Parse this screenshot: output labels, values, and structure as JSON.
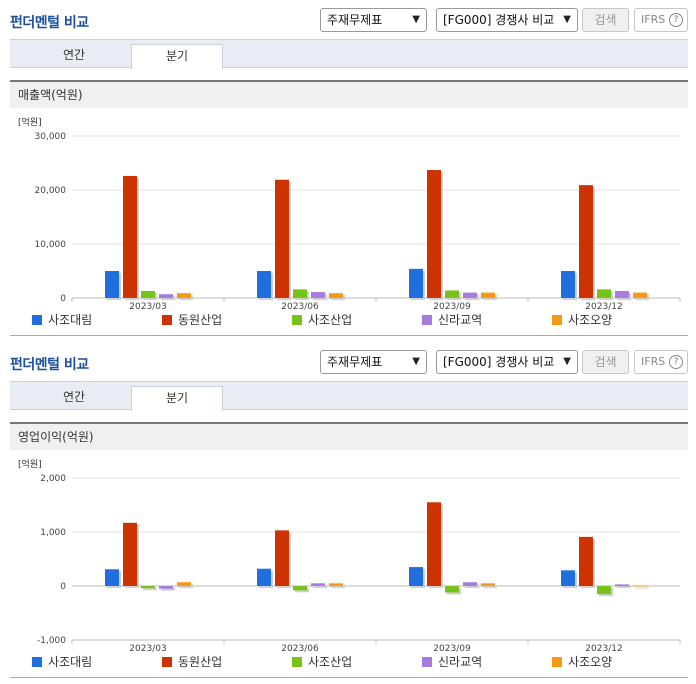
{
  "panels": [
    {
      "title": "펀더멘털 비교",
      "select1": "주재무제표",
      "select2": "[FG000] 경쟁사 비교",
      "search_label": "검색",
      "ifrs_label": "IFRS",
      "tabs": [
        "연간",
        "분기"
      ],
      "active_tab": "분기",
      "metric": "매출액(억원)"
    },
    {
      "title": "펀더멘털 비교",
      "select1": "주재무제표",
      "select2": "[FG000] 경쟁사 비교",
      "search_label": "검색",
      "ifrs_label": "IFRS",
      "tabs": [
        "연간",
        "분기"
      ],
      "active_tab": "분기",
      "metric": "영업이익(억원)"
    }
  ],
  "colors": {
    "사조대림": "#1f6fdc",
    "동원산업": "#cc3300",
    "사조산업": "#77c31a",
    "신라교역": "#a87be0",
    "사조오양": "#f59b13"
  },
  "chart_data": [
    {
      "type": "bar",
      "unit_label": "[억원]",
      "categories": [
        "2023/03",
        "2023/06",
        "2023/09",
        "2023/12"
      ],
      "ylim": [
        0,
        30000
      ],
      "yticks": [
        "30,000",
        "20,000",
        "10,000",
        "0"
      ],
      "ytick_values": [
        30000,
        20000,
        10000,
        0
      ],
      "series": [
        {
          "name": "사조대림",
          "values": [
            5000,
            5000,
            5400,
            5000
          ]
        },
        {
          "name": "동원산업",
          "values": [
            22600,
            21900,
            23700,
            20900
          ]
        },
        {
          "name": "사조산업",
          "values": [
            1300,
            1600,
            1400,
            1600
          ]
        },
        {
          "name": "신라교역",
          "values": [
            700,
            1100,
            1000,
            1300
          ]
        },
        {
          "name": "사조오양",
          "values": [
            900,
            900,
            1000,
            1000
          ]
        }
      ]
    },
    {
      "type": "bar",
      "unit_label": "[억원]",
      "categories": [
        "2023/03",
        "2023/06",
        "2023/09",
        "2023/12"
      ],
      "ylim": [
        -1000,
        2000
      ],
      "yticks": [
        "2,000",
        "1,000",
        "0",
        "-1,000"
      ],
      "ytick_values": [
        2000,
        1000,
        0,
        -1000
      ],
      "series": [
        {
          "name": "사조대림",
          "values": [
            310,
            320,
            350,
            290
          ]
        },
        {
          "name": "동원산업",
          "values": [
            1170,
            1030,
            1550,
            910
          ]
        },
        {
          "name": "사조산업",
          "values": [
            -40,
            -80,
            -120,
            -150
          ]
        },
        {
          "name": "신라교역",
          "values": [
            -50,
            50,
            70,
            30
          ]
        },
        {
          "name": "사조오양",
          "values": [
            70,
            50,
            50,
            10
          ]
        }
      ]
    }
  ]
}
